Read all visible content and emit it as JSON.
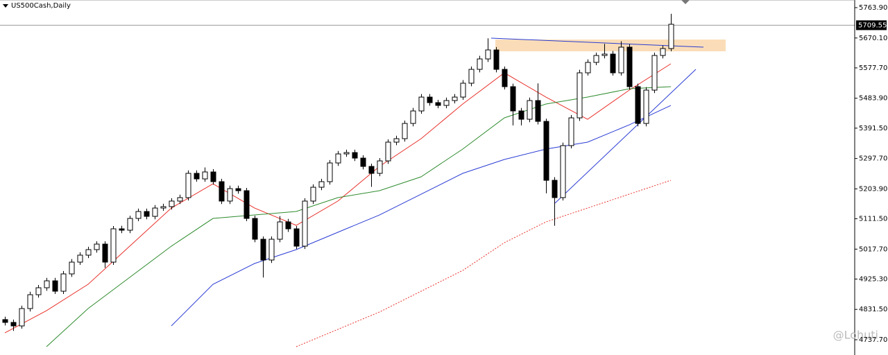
{
  "chart_data": {
    "type": "candlestick",
    "title": "US500Cash,Daily",
    "watermark": "@Lohuti",
    "up_color": "#ffffff",
    "down_color": "#000000",
    "outline_color": "#000000",
    "ylim": [
      4690.6,
      5787.5
    ],
    "yticks": [
      {
        "value": 5763.9,
        "label": "5763.90"
      },
      {
        "value": 5670.1,
        "label": "5670.10"
      },
      {
        "value": 5577.7,
        "label": "5577.70"
      },
      {
        "value": 5483.9,
        "label": "5483.90"
      },
      {
        "value": 5391.5,
        "label": "5391.50"
      },
      {
        "value": 5297.7,
        "label": "5297.70"
      },
      {
        "value": 5203.9,
        "label": "5203.90"
      },
      {
        "value": 5111.5,
        "label": "5111.50"
      },
      {
        "value": 5017.7,
        "label": "5017.70"
      },
      {
        "value": 4925.3,
        "label": "4925.30"
      },
      {
        "value": 4831.5,
        "label": "4831.50"
      },
      {
        "value": 4737.7,
        "label": "4737.70"
      }
    ],
    "last_price": 5709.55,
    "open": [
      4800.0,
      4791.3,
      4780.5,
      4834.1,
      4876.9,
      4898.4,
      4919.8,
      4887.7,
      4941.2,
      4977.6,
      4999.1,
      5016.2,
      5033.3,
      4977.6,
      5080.5,
      5076.2,
      5112.6,
      5134.0,
      5119.0,
      5144.7,
      5149.0,
      5166.2,
      5176.9,
      5251.9,
      5234.7,
      5256.2,
      5226.2,
      5166.2,
      5204.7,
      5198.3,
      5112.6,
      5048.3,
      4984.1,
      5048.3,
      5101.9,
      5080.5,
      5026.9,
      5166.2,
      5209.0,
      5226.2,
      5284.0,
      5311.9,
      5316.1,
      5299.0,
      5273.3,
      5251.9,
      5290.4,
      5348.3,
      5359.0,
      5406.1,
      5444.7,
      5487.5,
      5470.4,
      5461.8,
      5476.8,
      5487.5,
      5530.4,
      5573.2,
      5605.4,
      5633.2,
      5573.2,
      5519.7,
      5444.7,
      5419.0,
      5476.8,
      5412.5,
      5230.4,
      5176.9,
      5337.6,
      5423.3,
      5562.5,
      5594.7,
      5616.1,
      5620.4,
      5562.5,
      5641.8,
      5519.7,
      5406.1,
      5509.0,
      5616.1,
      5637.5
    ],
    "high": [
      4809,
      4800,
      4843,
      4886,
      4907,
      4929,
      4929,
      4950,
      4987,
      5008,
      5025,
      5042,
      5042,
      5089,
      5090,
      5121,
      5143,
      5143,
      5154,
      5158,
      5175,
      5186,
      5261,
      5261,
      5270,
      5265,
      5235,
      5214,
      5214,
      5207,
      5121,
      5057,
      5057,
      5120,
      5111,
      5089,
      5175,
      5218,
      5235,
      5293,
      5321,
      5325,
      5325,
      5308,
      5282,
      5299,
      5357,
      5368,
      5415,
      5454,
      5497,
      5497,
      5479,
      5486,
      5497,
      5540,
      5582,
      5615,
      5669,
      5642,
      5582,
      5529,
      5454,
      5486,
      5530,
      5421,
      5240,
      5347,
      5432,
      5572,
      5604,
      5625,
      5652,
      5630,
      5660,
      5651,
      5529,
      5518,
      5625,
      5647,
      5745
    ],
    "low": [
      4782,
      4765,
      4772,
      4825,
      4868,
      4889,
      4879,
      4879,
      4932,
      4969,
      4990,
      5007,
      4960,
      4969,
      5067,
      5067,
      5104,
      5110,
      5110,
      5136,
      5140,
      5157,
      5168,
      5226,
      5226,
      5217,
      5157,
      5157,
      5189,
      5104,
      5039,
      4930,
      4975,
      5039,
      5071,
      5018,
      5018,
      5157,
      5200,
      5217,
      5275,
      5303,
      5290,
      5264,
      5210,
      5243,
      5281,
      5339,
      5350,
      5397,
      5436,
      5461,
      5453,
      5453,
      5468,
      5479,
      5521,
      5564,
      5596,
      5564,
      5511,
      5400,
      5400,
      5410,
      5403,
      5190,
      5090,
      5168,
      5329,
      5414,
      5554,
      5586,
      5607,
      5554,
      5554,
      5511,
      5397,
      5397,
      5500,
      5607,
      5629
    ],
    "close": [
      4791.3,
      4780.5,
      4834.1,
      4876.9,
      4898.4,
      4919.8,
      4887.7,
      4941.2,
      4977.6,
      4999.1,
      5016.2,
      5033.3,
      4977.6,
      5080.5,
      5076.2,
      5112.6,
      5134.0,
      5119.0,
      5144.7,
      5149.0,
      5166.2,
      5176.9,
      5251.9,
      5234.7,
      5256.2,
      5226.2,
      5166.2,
      5204.7,
      5198.3,
      5112.6,
      5048.3,
      4984.1,
      5048.3,
      5101.9,
      5080.5,
      5026.9,
      5166.2,
      5209.0,
      5226.2,
      5284.0,
      5311.9,
      5316.1,
      5299.0,
      5273.3,
      5251.9,
      5290.4,
      5348.3,
      5359.0,
      5406.1,
      5444.7,
      5487.5,
      5470.4,
      5461.8,
      5476.8,
      5487.5,
      5530.4,
      5573.2,
      5605.4,
      5633.2,
      5573.2,
      5519.7,
      5444.7,
      5419.0,
      5476.8,
      5412.5,
      5230.4,
      5176.9,
      5337.6,
      5423.3,
      5562.5,
      5594.7,
      5616.1,
      5620.4,
      5562.5,
      5641.8,
      5519.7,
      5406.1,
      5509.0,
      5616.1,
      5637.5,
      5712.5
    ],
    "overlays": [
      {
        "color": "#e8302a",
        "dashed": false,
        "x": [
          0,
          5,
          10,
          15,
          20,
          25,
          30,
          35,
          40,
          45,
          50,
          55,
          60,
          65,
          70,
          75,
          80
        ],
        "values": [
          4759.1,
          4827.7,
          4909.1,
          5026.9,
          5144.7,
          5219.7,
          5144.7,
          5091.2,
          5166.2,
          5273.3,
          5359.0,
          5466.1,
          5562.5,
          5487.5,
          5419.0,
          5509.0,
          5590.4
        ]
      },
      {
        "color": "#2e8b2e",
        "dashed": false,
        "x": [
          5,
          10,
          15,
          20,
          25,
          30,
          35,
          40,
          45,
          50,
          55,
          60,
          65,
          70,
          75,
          80
        ],
        "values": [
          4716.3,
          4834.1,
          4930.5,
          5026.9,
          5112.6,
          5123.3,
          5134.0,
          5176.9,
          5198.3,
          5241.2,
          5326.9,
          5423.3,
          5466.1,
          5487.5,
          5513.2,
          5519.7
        ]
      },
      {
        "color": "#2a3bd4",
        "dashed": false,
        "x": [
          20,
          25,
          30,
          35,
          40,
          45,
          50,
          55,
          60,
          65,
          70,
          75,
          80
        ],
        "values": [
          4780.5,
          4909.1,
          4973.4,
          5016.2,
          5069.8,
          5123.3,
          5187.6,
          5251.9,
          5294.7,
          5326.9,
          5348.3,
          5401.8,
          5461.8
        ]
      },
      {
        "color": "#e8302a",
        "dashed": true,
        "x": [
          35,
          40,
          45,
          50,
          55,
          60,
          65,
          70,
          75,
          80
        ],
        "values": [
          4716.3,
          4769.8,
          4823.4,
          4887.7,
          4951.9,
          5037.6,
          5101.9,
          5144.7,
          5187.6,
          5230.4
        ]
      }
    ]
  }
}
